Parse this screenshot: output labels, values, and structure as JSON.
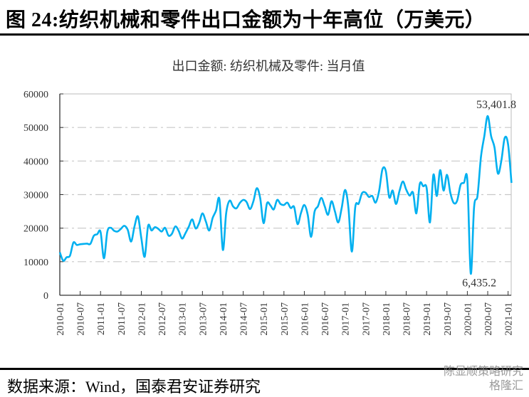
{
  "figure_title": "图 24:纺织机械和零件出口金额为十年高位（万美元）",
  "source": "数据来源：Wind，国泰君安证券研究",
  "watermark": {
    "line1": "陈显顺策略研究",
    "line2": "格隆汇"
  },
  "chart_data": {
    "type": "line",
    "title": "出口金额: 纺织机械及零件: 当月值",
    "xlabel": "",
    "ylabel": "",
    "x_start": "2010-01",
    "x_end": "2021-02",
    "x_tick_labels": [
      "2010-01",
      "2010-07",
      "2011-01",
      "2011-07",
      "2012-01",
      "2012-07",
      "2013-01",
      "2013-07",
      "2014-01",
      "2014-07",
      "2015-01",
      "2015-07",
      "2016-01",
      "2016-07",
      "2017-01",
      "2017-07",
      "2018-01",
      "2018-07",
      "2019-01",
      "2019-07",
      "2020-01",
      "2020-07",
      "2021-01"
    ],
    "y_tick_labels": [
      "0",
      "10000",
      "20000",
      "30000",
      "40000",
      "50000",
      "60000"
    ],
    "ylim": [
      0,
      60000
    ],
    "grid": "horizontal dash-dot",
    "line_color": "#00B0F0",
    "series": [
      {
        "values": [
          12800,
          10300,
          11300,
          11800,
          15700,
          15000,
          15200,
          15300,
          15400,
          15300,
          17700,
          18200,
          18900,
          11000,
          19000,
          20100,
          19200,
          19000,
          19800,
          20700,
          19500,
          16000,
          20500,
          23500,
          17000,
          11500,
          20700,
          19300,
          20300,
          19800,
          19000,
          20100,
          17800,
          18300,
          20500,
          19200,
          16900,
          18500,
          20500,
          22600,
          19900,
          21500,
          24400,
          22000,
          19300,
          23000,
          25200,
          28600,
          13500,
          24500,
          28200,
          26500,
          25900,
          27500,
          28400,
          27800,
          25700,
          28000,
          31900,
          29000,
          21500,
          27400,
          26800,
          25600,
          28400,
          27200,
          26900,
          27600,
          26000,
          26300,
          21200,
          24500,
          26900,
          24000,
          17400,
          24800,
          26500,
          29000,
          26500,
          24000,
          28000,
          25000,
          21700,
          26000,
          31400,
          26000,
          13000,
          26300,
          27300,
          30400,
          30600,
          29300,
          29600,
          27600,
          31000,
          37500,
          37000,
          29200,
          31200,
          27200,
          31000,
          33900,
          31500,
          29700,
          30600,
          24400,
          33200,
          32500,
          32000,
          21700,
          35900,
          29600,
          37300,
          31200,
          35900,
          30500,
          27500,
          28200,
          32900,
          33500,
          34300,
          6435.2,
          26300,
          29700,
          41200,
          47500,
          53401.8,
          47400,
          44000,
          36300,
          40000,
          46900,
          45000,
          33500
        ]
      }
    ],
    "annotations": [
      {
        "text": "53,401.8",
        "x": "2020-07",
        "y": 53401.8
      },
      {
        "text": "6,435.2",
        "x": "2020-02",
        "y": 6435.2
      }
    ]
  }
}
